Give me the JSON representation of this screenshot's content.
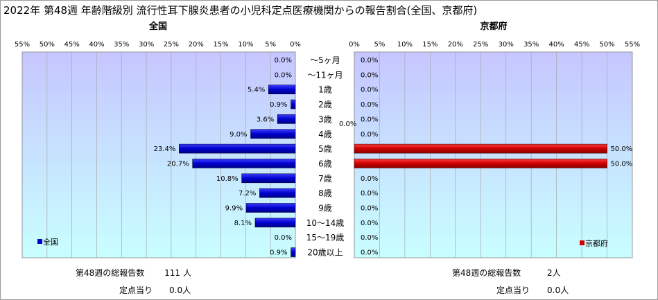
{
  "title": "2022年 第48週 年齢階級別 流行性耳下腺炎患者の小児科定点医療機関からの報告割合(全国、京都府)",
  "chart_data": [
    {
      "type": "bar",
      "orientation": "horizontal",
      "direction": "leftward",
      "subtitle": "全国",
      "xlim": [
        0,
        55
      ],
      "ticks": [
        "55%",
        "50%",
        "45%",
        "40%",
        "35%",
        "30%",
        "25%",
        "20%",
        "15%",
        "10%",
        "5%",
        "0%"
      ],
      "legend": {
        "label": "全国",
        "placement": "bottom-left",
        "color": "#0000cc"
      },
      "categories": [
        "～5ヶ月",
        "～11ヶ月",
        "1歳",
        "2歳",
        "3歳",
        "4歳",
        "5歳",
        "6歳",
        "7歳",
        "8歳",
        "9歳",
        "10～14歳",
        "15～19歳",
        "20歳以上"
      ],
      "series": [
        {
          "name": "全国",
          "values": [
            0.0,
            0.0,
            5.4,
            0.9,
            3.6,
            9.0,
            23.4,
            20.7,
            10.8,
            7.2,
            9.9,
            8.1,
            0.0,
            0.9
          ],
          "labels": [
            "0.0%",
            "0.0%",
            "5.4%",
            "0.9%",
            "3.6%",
            "9.0%",
            "23.4%",
            "20.7%",
            "10.8%",
            "7.2%",
            "9.9%",
            "8.1%",
            "0.0%",
            "0.9%"
          ]
        }
      ],
      "bar_color": "#0000cc",
      "grid": true,
      "background": [
        "#c8c8ff",
        "#c8ffff"
      ]
    },
    {
      "type": "bar",
      "orientation": "horizontal",
      "direction": "rightward",
      "subtitle": "京都府",
      "xlim": [
        0,
        55
      ],
      "ticks": [
        "0%",
        "5%",
        "10%",
        "15%",
        "20%",
        "25%",
        "30%",
        "35%",
        "40%",
        "45%",
        "50%",
        "55%"
      ],
      "legend": {
        "label": "京都府",
        "placement": "bottom-right",
        "color": "#cc0000"
      },
      "categories": [
        "～5ヶ月",
        "～11ヶ月",
        "1歳",
        "2歳",
        "3歳",
        "4歳",
        "5歳",
        "6歳",
        "7歳",
        "8歳",
        "9歳",
        "10～14歳",
        "15～19歳",
        "20歳以上"
      ],
      "series": [
        {
          "name": "京都府",
          "values": [
            0.0,
            0.0,
            0.0,
            0.0,
            0.0,
            0.0,
            50.0,
            50.0,
            0.0,
            0.0,
            0.0,
            0.0,
            0.0,
            0.0
          ],
          "labels": [
            "0.0%",
            "0.0%",
            "0.0%",
            "0.0%",
            "0.0%",
            "0.0%",
            "50.0%",
            "50.0%",
            "0.0%",
            "0.0%",
            "0.0%",
            "0.0%",
            "0.0%",
            "0.0%"
          ]
        }
      ],
      "bar_color": "#cc0000",
      "grid": true,
      "background": [
        "#c8c8ff",
        "#c8ffff"
      ]
    }
  ],
  "footer": {
    "national_total_label": "第48週の総報告数",
    "national_total_value": "111",
    "national_total_unit": "人",
    "national_per_label": "定点当り",
    "national_per_value": "0.0人",
    "kyoto_total_label": "第48週の総報告数",
    "kyoto_total_value": "2人",
    "kyoto_per_label": "定点当り",
    "kyoto_per_value": "0.0人"
  },
  "stray_label": "0.0%"
}
